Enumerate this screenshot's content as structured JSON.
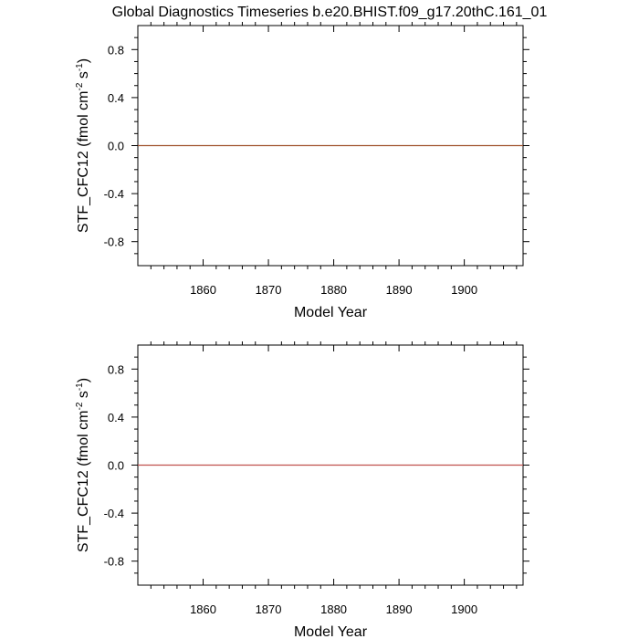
{
  "title": "Global Diagnostics Timeseries b.e20.BHIST.f09_g17.20thC.161_01",
  "chart_data": [
    {
      "type": "line",
      "xlabel": "Model Year",
      "ylabel": "STF_CFC12 (fmol cm^-2 s^-1)",
      "ylabel_parts": {
        "prefix": "STF_CFC12 (fmol cm",
        "sup1": "-2",
        "mid": " s",
        "sup2": "-1",
        "suffix": ")"
      },
      "xlim": [
        1850,
        1909
      ],
      "ylim": [
        -1,
        1
      ],
      "x_ticks": [
        1860,
        1870,
        1880,
        1890,
        1900
      ],
      "x_tick_labels": [
        "1860",
        "1870",
        "1880",
        "1890",
        "1900"
      ],
      "y_ticks": [
        -0.8,
        -0.4,
        0.0,
        0.4,
        0.8
      ],
      "y_tick_labels": [
        "-0.8",
        "-0.4",
        "0.0",
        "0.4",
        "0.8"
      ],
      "zero_line": true,
      "grid": false,
      "series": [
        {
          "color": "#a0522d",
          "x": [
            1850,
            1909
          ],
          "y": [
            0,
            0
          ]
        }
      ]
    },
    {
      "type": "line",
      "xlabel": "Model Year",
      "ylabel": "STF_CFC12 (fmol cm^-2 s^-1)",
      "ylabel_parts": {
        "prefix": "STF_CFC12 (fmol cm",
        "sup1": "-2",
        "mid": " s",
        "sup2": "-1",
        "suffix": ")"
      },
      "xlim": [
        1850,
        1909
      ],
      "ylim": [
        -1,
        1
      ],
      "x_ticks": [
        1860,
        1870,
        1880,
        1890,
        1900
      ],
      "x_tick_labels": [
        "1860",
        "1870",
        "1880",
        "1890",
        "1900"
      ],
      "y_ticks": [
        -0.8,
        -0.4,
        0.0,
        0.4,
        0.8
      ],
      "y_tick_labels": [
        "-0.8",
        "-0.4",
        "0.0",
        "0.4",
        "0.8"
      ],
      "zero_line": true,
      "grid": false,
      "series": [
        {
          "color": "#c0504d",
          "x": [
            1850,
            1909
          ],
          "y": [
            0,
            0
          ]
        }
      ]
    }
  ]
}
